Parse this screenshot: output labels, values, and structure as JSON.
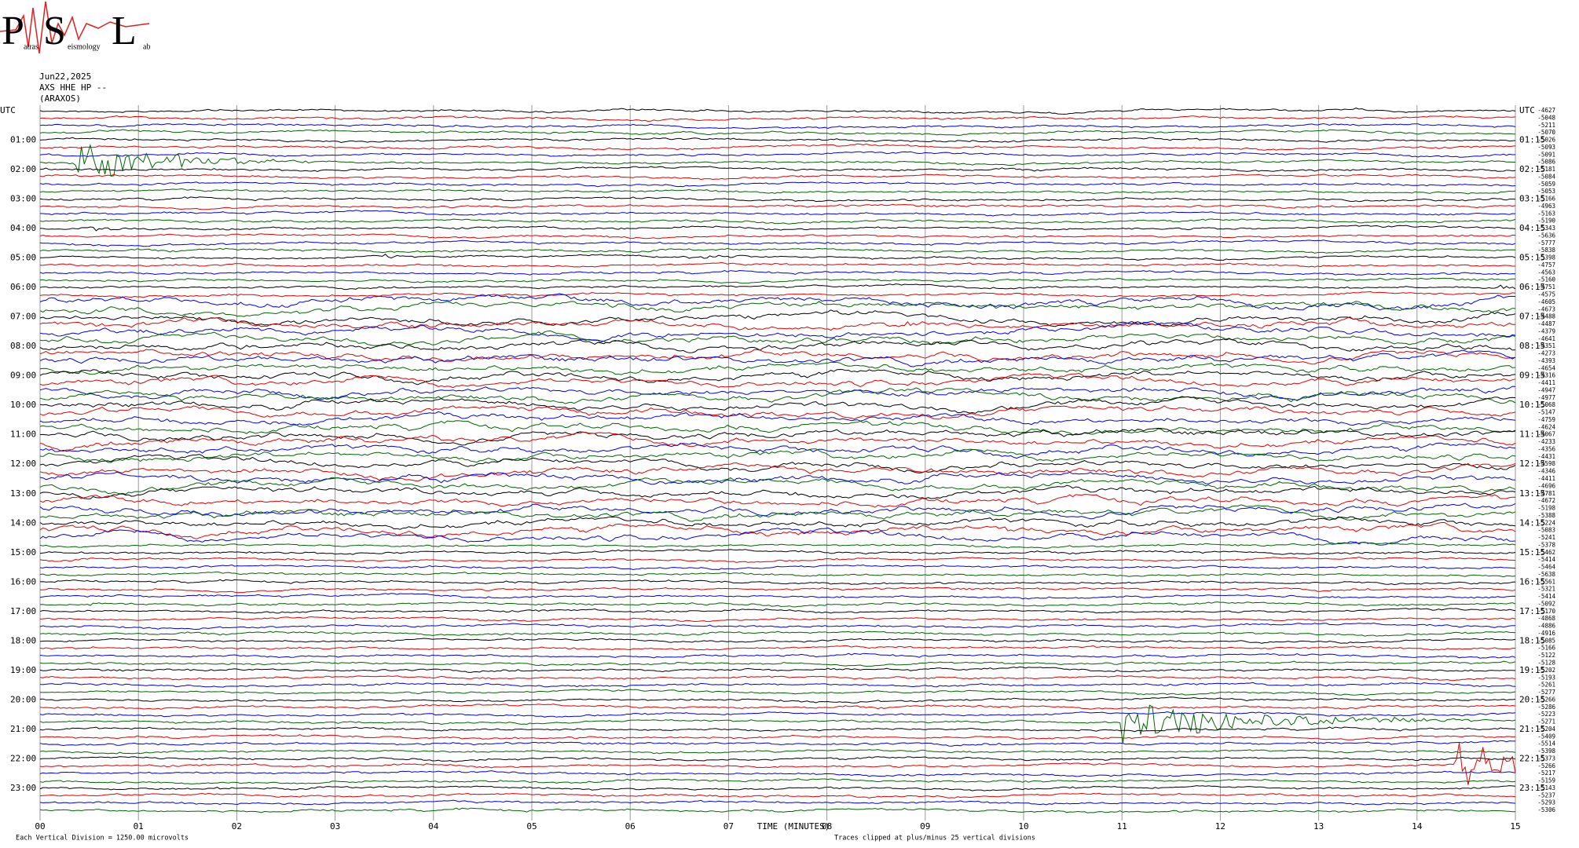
{
  "chart_data": {
    "type": "helicorder",
    "logo": [
      "P",
      "atras",
      "S",
      "eismology",
      "L",
      "ab"
    ],
    "date": "Jun22,2025",
    "station": "AXS HHE HP --",
    "location": "(ARAXOS)",
    "left_labels": [
      "UTC",
      "01:00",
      "02:00",
      "03:00",
      "04:00",
      "05:00",
      "06:00",
      "07:00",
      "08:00",
      "09:00",
      "10:00",
      "11:00",
      "12:00",
      "13:00",
      "14:00",
      "15:00",
      "16:00",
      "17:00",
      "18:00",
      "19:00",
      "20:00",
      "21:00",
      "22:00",
      "23:00"
    ],
    "right_labels": [
      "UTC",
      "01:15",
      "02:15",
      "03:15",
      "04:15",
      "05:15",
      "06:15",
      "07:15",
      "08:15",
      "09:15",
      "10:15",
      "11:15",
      "12:15",
      "13:15",
      "14:15",
      "15:15",
      "16:15",
      "17:15",
      "18:15",
      "19:15",
      "20:15",
      "21:15",
      "22:15",
      "23:15"
    ],
    "row_values": [
      -4627,
      -5048,
      -5211,
      -5070,
      -5026,
      -5093,
      -5091,
      -5086,
      -5181,
      -5084,
      -5059,
      -5053,
      -5166,
      -4963,
      -5163,
      -5190,
      -5343,
      -5636,
      -5777,
      -5838,
      -5398,
      -4757,
      -4563,
      -5160,
      -4751,
      -4575,
      -4605,
      -4673,
      -4488,
      -4487,
      -4379,
      -4641,
      -4351,
      -4273,
      -4393,
      -4654,
      -4316,
      -4411,
      -4947,
      -4977,
      -5068,
      -5147,
      -4759,
      -4624,
      -4067,
      -4233,
      -4356,
      -4431,
      -4598,
      -4346,
      -4411,
      -4696,
      -4781,
      -4672,
      -5198,
      -5388,
      -5224,
      -5083,
      -5241,
      -5378,
      -5462,
      -5414,
      -5464,
      -5638,
      -5561,
      -5321,
      -5414,
      -5092,
      -5170,
      -4868,
      -4886,
      -4916,
      -5085,
      -5166,
      -5122,
      -5128,
      -5202,
      -5193,
      -5261,
      -5277,
      -5266,
      -5286,
      -5223,
      -5271,
      -5204,
      -5409,
      -5514,
      -5398,
      -5373,
      -5266,
      -5217,
      -5159,
      -5143,
      -5237,
      -5293,
      -5306
    ],
    "colors": [
      "#000000",
      "#e00000",
      "#0000e0",
      "#006400"
    ],
    "xlim": [
      0,
      15
    ],
    "xticks": [
      {
        "value": 0,
        "label": "00"
      },
      {
        "value": 1,
        "label": "01"
      },
      {
        "value": 2,
        "label": "02"
      },
      {
        "value": 3,
        "label": "03"
      },
      {
        "value": 4,
        "label": "04"
      },
      {
        "value": 5,
        "label": "05"
      },
      {
        "value": 6,
        "label": "06"
      },
      {
        "value": 7,
        "label": "07"
      },
      {
        "value": 8,
        "label": "08"
      },
      {
        "value": 9,
        "label": "09"
      },
      {
        "value": 10,
        "label": "10"
      },
      {
        "value": 11,
        "label": "11"
      },
      {
        "value": 12,
        "label": "12"
      },
      {
        "value": 13,
        "label": "13"
      },
      {
        "value": 14,
        "label": "14"
      },
      {
        "value": 15,
        "label": "15"
      }
    ],
    "xlabel": "TIME (MINUTES)",
    "scale_note": "Each Vertical Division = 1250.00 microvolts",
    "clip_note": "Traces clipped at plus/minus 25 vertical divisions"
  }
}
